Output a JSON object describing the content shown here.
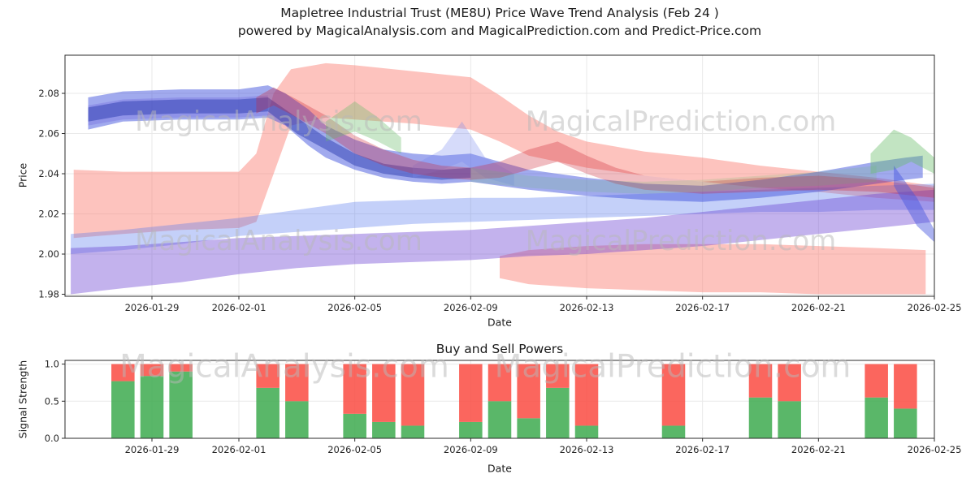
{
  "title": {
    "line1": "Mapletree Industrial Trust (ME8U) Price Wave Trend Analysis (Feb 24 )",
    "line2": "powered by MagicalAnalysis.com and MagicalPrediction.com and Predict-Price.com"
  },
  "watermarks": {
    "analysis": "MagicalAnalysis.com",
    "prediction": "MagicalPrediction.com"
  },
  "chart_data": [
    {
      "type": "area",
      "name": "price-wave-trend",
      "xlabel": "Date",
      "ylabel": "Price",
      "x_origin": "2026-01-26",
      "xlim_days": [
        0,
        30
      ],
      "ylim": [
        1.979,
        2.099
      ],
      "yticks": [
        1.98,
        2.0,
        2.02,
        2.04,
        2.06,
        2.08
      ],
      "xticks": [
        "2026-01-29",
        "2026-02-01",
        "2026-02-05",
        "2026-02-09",
        "2026-02-13",
        "2026-02-17",
        "2026-02-21",
        "2026-02-25"
      ],
      "grid": true,
      "bands": [
        {
          "name": "pink-main",
          "color": "#fa7a6e",
          "opacity": 0.45,
          "days": [
            0.3,
            2,
            4,
            6,
            6.6,
            7.2,
            7.8,
            9,
            10,
            12,
            14,
            15,
            16,
            17,
            18,
            20,
            22,
            24,
            26,
            28,
            30
          ],
          "lower": [
            2.008,
            2.01,
            2.012,
            2.013,
            2.016,
            2.04,
            2.064,
            2.068,
            2.067,
            2.065,
            2.062,
            2.056,
            2.049,
            2.046,
            2.043,
            2.039,
            2.036,
            2.033,
            2.031,
            2.028,
            2.026
          ],
          "upper": [
            2.042,
            2.041,
            2.041,
            2.041,
            2.05,
            2.08,
            2.092,
            2.095,
            2.094,
            2.091,
            2.088,
            2.079,
            2.069,
            2.061,
            2.056,
            2.051,
            2.048,
            2.044,
            2.041,
            2.038,
            2.034
          ]
        },
        {
          "name": "pink-low",
          "color": "#fa7a6e",
          "opacity": 0.45,
          "days": [
            15,
            16,
            18,
            20,
            22,
            24,
            26,
            28,
            29.7
          ],
          "lower": [
            1.988,
            1.985,
            1.983,
            1.982,
            1.981,
            1.981,
            1.98,
            1.98,
            1.98
          ],
          "upper": [
            1.999,
            2.002,
            2.004,
            2.005,
            2.005,
            2.005,
            2.004,
            2.003,
            2.002
          ]
        },
        {
          "name": "blue-wide",
          "color": "#5577ee",
          "opacity": 0.35,
          "days": [
            0.2,
            2,
            4,
            6,
            8,
            10,
            12,
            14,
            16,
            18,
            20,
            22,
            24,
            26,
            28,
            30
          ],
          "lower": [
            2.0,
            2.002,
            2.005,
            2.009,
            2.011,
            2.013,
            2.015,
            2.016,
            2.017,
            2.018,
            2.019,
            2.02,
            2.021,
            2.021,
            2.022,
            2.022
          ],
          "upper": [
            2.01,
            2.012,
            2.015,
            2.018,
            2.022,
            2.026,
            2.027,
            2.028,
            2.028,
            2.029,
            2.03,
            2.031,
            2.032,
            2.033,
            2.034,
            2.035
          ]
        },
        {
          "name": "purple-low",
          "color": "#6a3fd1",
          "opacity": 0.4,
          "days": [
            0.2,
            2,
            4,
            6,
            8,
            10,
            12,
            14,
            16,
            18,
            20,
            22,
            24,
            26,
            28,
            30
          ],
          "lower": [
            1.98,
            1.983,
            1.986,
            1.99,
            1.993,
            1.995,
            1.996,
            1.997,
            1.999,
            2.0,
            2.002,
            2.004,
            2.007,
            2.01,
            2.013,
            2.016
          ],
          "upper": [
            2.003,
            2.004,
            2.006,
            2.008,
            2.009,
            2.01,
            2.011,
            2.012,
            2.014,
            2.016,
            2.018,
            2.021,
            2.024,
            2.027,
            2.03,
            2.032
          ]
        },
        {
          "name": "purple-topleft",
          "color": "#7744cc",
          "opacity": 0.25,
          "days": [
            0.8,
            2,
            4,
            6,
            7
          ],
          "lower": [
            2.064,
            2.067,
            2.068,
            2.068,
            2.069
          ],
          "upper": [
            2.074,
            2.077,
            2.078,
            2.078,
            2.079
          ]
        },
        {
          "name": "blue-top",
          "color": "#4455dd",
          "opacity": 0.5,
          "days": [
            0.8,
            2,
            4,
            6,
            7,
            7.6,
            8.4,
            9,
            10,
            11,
            12,
            13,
            14,
            15,
            16,
            18,
            20,
            22,
            24,
            26,
            28,
            29,
            29.6
          ],
          "lower": [
            2.062,
            2.066,
            2.067,
            2.067,
            2.068,
            2.064,
            2.054,
            2.048,
            2.042,
            2.038,
            2.036,
            2.035,
            2.036,
            2.034,
            2.032,
            2.029,
            2.027,
            2.026,
            2.028,
            2.031,
            2.035,
            2.037,
            2.038
          ],
          "upper": [
            2.078,
            2.081,
            2.082,
            2.082,
            2.084,
            2.08,
            2.072,
            2.064,
            2.057,
            2.052,
            2.05,
            2.049,
            2.05,
            2.046,
            2.042,
            2.038,
            2.035,
            2.034,
            2.037,
            2.041,
            2.046,
            2.048,
            2.049
          ]
        },
        {
          "name": "navy-core",
          "color": "#2233aa",
          "opacity": 0.45,
          "days": [
            0.8,
            2,
            4,
            6,
            7,
            8,
            9,
            10,
            11,
            12,
            13,
            14
          ],
          "lower": [
            2.066,
            2.069,
            2.07,
            2.07,
            2.071,
            2.06,
            2.052,
            2.044,
            2.04,
            2.038,
            2.037,
            2.038
          ],
          "upper": [
            2.073,
            2.076,
            2.077,
            2.077,
            2.078,
            2.068,
            2.058,
            2.05,
            2.045,
            2.043,
            2.042,
            2.043
          ]
        },
        {
          "name": "blue-spike",
          "color": "#7788ee",
          "opacity": 0.3,
          "days": [
            12,
            13,
            13.7,
            14.5,
            15.5
          ],
          "lower": [
            2.038,
            2.042,
            2.046,
            2.038,
            2.034
          ],
          "upper": [
            2.044,
            2.052,
            2.066,
            2.048,
            2.04
          ]
        },
        {
          "name": "red-trend",
          "color": "#cc2233",
          "opacity": 0.3,
          "days": [
            6.6,
            7.2,
            8,
            9,
            10,
            11,
            12,
            13,
            14,
            15,
            16,
            17,
            18,
            19,
            20,
            22,
            24,
            26,
            28,
            30
          ],
          "lower": [
            2.07,
            2.074,
            2.068,
            2.06,
            2.05,
            2.044,
            2.04,
            2.038,
            2.037,
            2.038,
            2.042,
            2.046,
            2.04,
            2.035,
            2.032,
            2.03,
            2.031,
            2.032,
            2.031,
            2.028
          ],
          "upper": [
            2.078,
            2.083,
            2.077,
            2.069,
            2.059,
            2.052,
            2.047,
            2.044,
            2.043,
            2.046,
            2.052,
            2.056,
            2.049,
            2.043,
            2.039,
            2.036,
            2.038,
            2.039,
            2.037,
            2.033
          ]
        },
        {
          "name": "green-mid",
          "color": "#66bb66",
          "opacity": 0.35,
          "days": [
            9,
            10,
            10.8,
            11.6
          ],
          "lower": [
            2.056,
            2.061,
            2.056,
            2.05
          ],
          "upper": [
            2.066,
            2.076,
            2.068,
            2.058
          ]
        },
        {
          "name": "green-long",
          "color": "#66bb66",
          "opacity": 0.18,
          "days": [
            14,
            16,
            18,
            20,
            22,
            24,
            26,
            28
          ],
          "lower": [
            2.036,
            2.033,
            2.031,
            2.03,
            2.031,
            2.033,
            2.034,
            2.036
          ],
          "upper": [
            2.043,
            2.039,
            2.037,
            2.036,
            2.037,
            2.039,
            2.041,
            2.044
          ]
        },
        {
          "name": "green-right",
          "color": "#66bb66",
          "opacity": 0.4,
          "days": [
            27.8,
            28.6,
            29.2,
            30
          ],
          "lower": [
            2.04,
            2.042,
            2.046,
            2.04
          ],
          "upper": [
            2.05,
            2.062,
            2.058,
            2.048
          ]
        },
        {
          "name": "blue-drop",
          "color": "#4455dd",
          "opacity": 0.45,
          "days": [
            28.6,
            29.4,
            30
          ],
          "lower": [
            2.034,
            2.014,
            2.006
          ],
          "upper": [
            2.044,
            2.028,
            2.012
          ]
        }
      ]
    },
    {
      "type": "bar",
      "name": "buy-sell-powers",
      "title": "Buy and Sell Powers",
      "xlabel": "Date",
      "ylabel": "Signal Strength",
      "x_origin": "2026-01-26",
      "xlim_days": [
        0,
        30
      ],
      "ylim": [
        0,
        1.05
      ],
      "yticks": [
        0,
        0.5,
        1
      ],
      "xticks": [
        "2026-01-29",
        "2026-02-01",
        "2026-02-05",
        "2026-02-09",
        "2026-02-13",
        "2026-02-17",
        "2026-02-21",
        "2026-02-25"
      ],
      "grid": true,
      "stacked": true,
      "colors": {
        "buy": "#3daa4f",
        "sell": "#fa4b42"
      },
      "bar_width_days": 0.8,
      "bars": [
        {
          "date": "2026-01-28",
          "buy": 0.77,
          "sell": 0.23
        },
        {
          "date": "2026-01-29",
          "buy": 0.84,
          "sell": 0.16
        },
        {
          "date": "2026-01-30",
          "buy": 0.9,
          "sell": 0.1
        },
        {
          "date": "2026-02-02",
          "buy": 0.68,
          "sell": 0.32
        },
        {
          "date": "2026-02-03",
          "buy": 0.5,
          "sell": 0.5
        },
        {
          "date": "2026-02-05",
          "buy": 0.33,
          "sell": 0.67
        },
        {
          "date": "2026-02-06",
          "buy": 0.22,
          "sell": 0.78
        },
        {
          "date": "2026-02-07",
          "buy": 0.17,
          "sell": 0.83
        },
        {
          "date": "2026-02-09",
          "buy": 0.22,
          "sell": 0.78
        },
        {
          "date": "2026-02-10",
          "buy": 0.5,
          "sell": 0.5
        },
        {
          "date": "2026-02-11",
          "buy": 0.27,
          "sell": 0.73
        },
        {
          "date": "2026-02-12",
          "buy": 0.68,
          "sell": 0.32
        },
        {
          "date": "2026-02-13",
          "buy": 0.17,
          "sell": 0.83
        },
        {
          "date": "2026-02-16",
          "buy": 0.17,
          "sell": 0.83
        },
        {
          "date": "2026-02-19",
          "buy": 0.55,
          "sell": 0.45
        },
        {
          "date": "2026-02-20",
          "buy": 0.5,
          "sell": 0.5
        },
        {
          "date": "2026-02-23",
          "buy": 0.55,
          "sell": 0.45
        },
        {
          "date": "2026-02-24",
          "buy": 0.4,
          "sell": 0.6
        }
      ]
    }
  ]
}
